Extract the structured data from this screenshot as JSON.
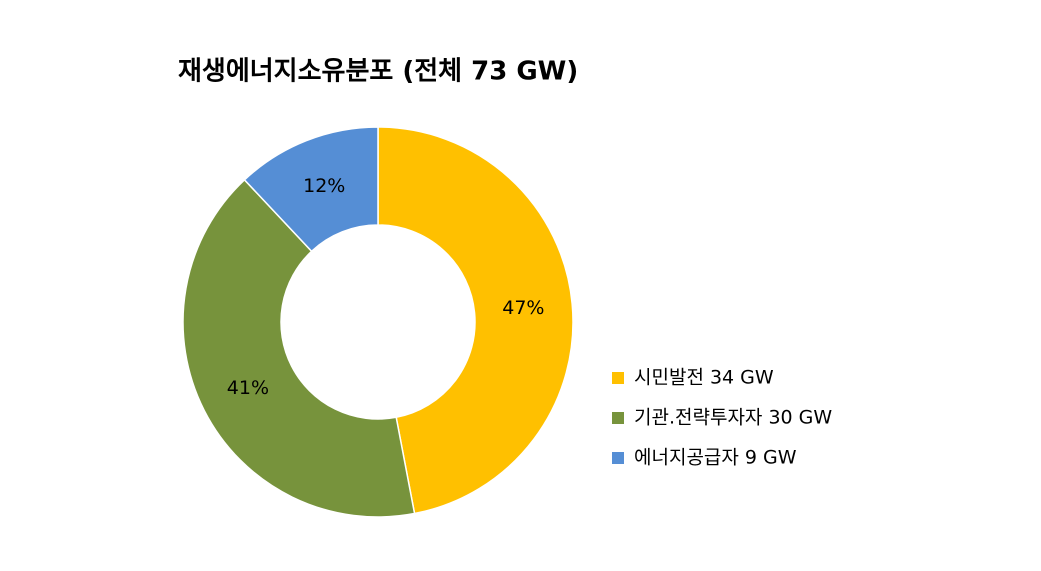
{
  "chart_data": {
    "type": "donut",
    "title": "재생에너지소유분포 (전체 73 GW)",
    "categories": [
      "시민발전 34 GW",
      "기관.전략투자자 30 GW",
      "에너지공급자 9 GW"
    ],
    "values": [
      47,
      41,
      12
    ],
    "value_labels": [
      "47%",
      "41%",
      "12%"
    ],
    "colors": [
      "#ffc000",
      "#77933c",
      "#558ed5"
    ],
    "legend": "right"
  }
}
